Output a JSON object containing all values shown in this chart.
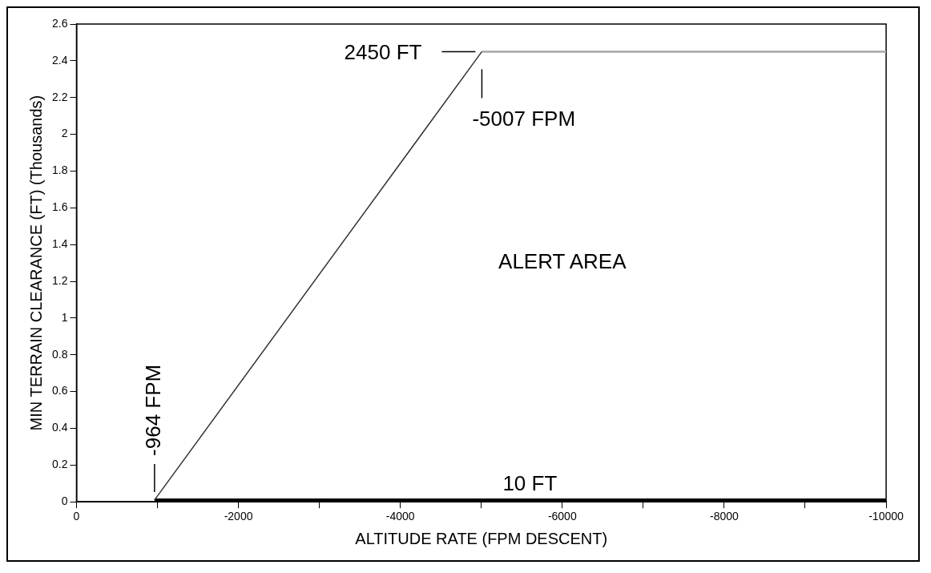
{
  "chart_data": {
    "type": "line",
    "xlabel": "ALTITUDE RATE (FPM DESCENT)",
    "ylabel": "MIN TERRAIN CLEARANCE (FT) (Thousands)",
    "xlim": [
      0,
      -10000
    ],
    "xticks": [
      0,
      {
        "value": -1000,
        "label": null
      },
      -2000,
      {
        "value": -3000,
        "label": null
      },
      -4000,
      {
        "value": -5000,
        "label": null
      },
      -6000,
      {
        "value": -7000,
        "label": null
      },
      -8000,
      {
        "value": -9000,
        "label": null
      },
      -10000
    ],
    "ylim": [
      0,
      2.6
    ],
    "yticks": [
      0,
      0.2,
      0.4,
      0.6,
      0.8,
      1,
      1.2,
      1.4,
      1.6,
      1.8,
      2,
      2.2,
      2.4,
      2.6
    ],
    "series": [
      {
        "color": "#333333",
        "x": [
          -964,
          -5007
        ],
        "values": [
          0.01,
          2.45
        ]
      },
      {
        "color": "#a6a6a6",
        "x": [
          -5007,
          -10000
        ],
        "values": [
          2.45,
          2.45
        ]
      },
      {
        "color": "#000000",
        "x": [
          -964,
          -10000
        ],
        "values": [
          0.01,
          0.01
        ]
      }
    ],
    "annotations": [
      {
        "text": "2450 FT",
        "x": -5007,
        "y": 2.45
      },
      {
        "text": "-5007 FPM",
        "x": -5007,
        "y": 2.45
      },
      {
        "text": "10 FT",
        "x": -5600,
        "y": 0.01
      },
      {
        "text": "-964 FPM",
        "x": -964,
        "y": 0.01
      },
      "ALERT AREA"
    ],
    "legend": false,
    "marker": "none",
    "line_style": "solid"
  }
}
